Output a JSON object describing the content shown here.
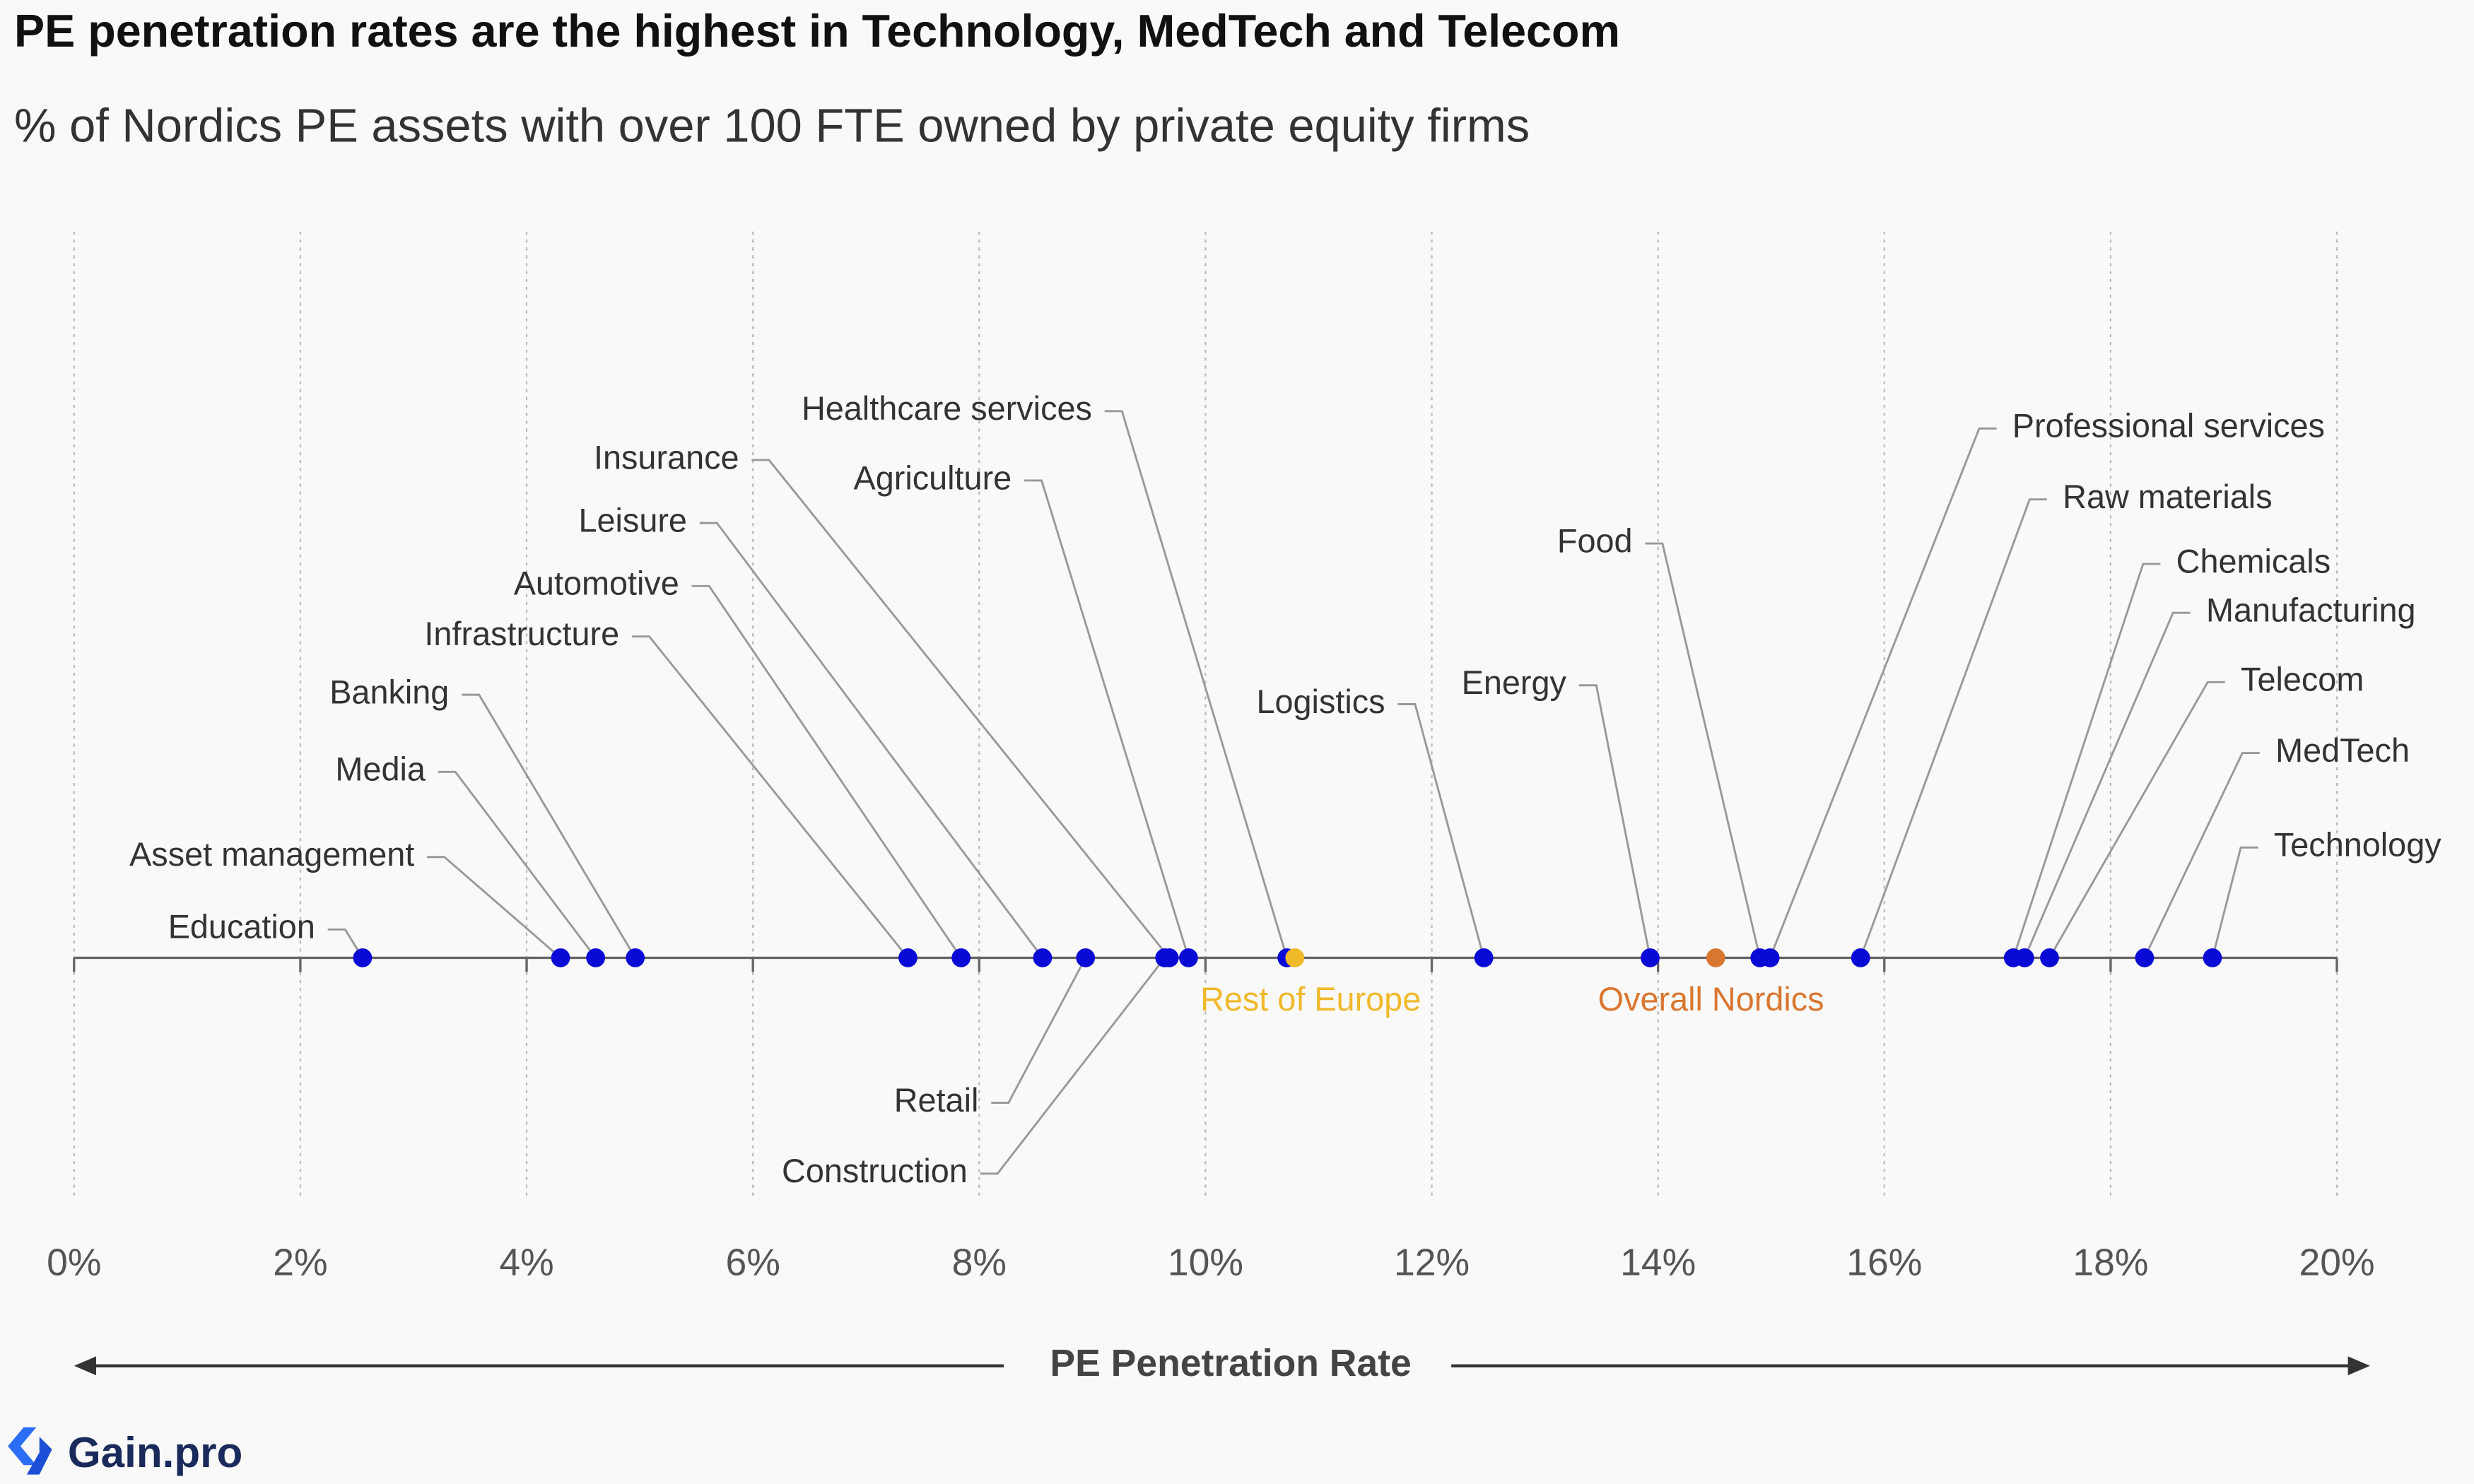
{
  "chart_data": {
    "type": "dot",
    "title": "PE penetration rates are the highest in Technology, MedTech and Telecom",
    "subtitle": "% of Nordics PE assets with over 100 FTE owned by private equity firms",
    "x_label": "PE Penetration Rate",
    "categories": [
      "Education",
      "Asset management",
      "Media",
      "Banking",
      "Infrastructure",
      "Automotive",
      "Leisure",
      "Retail",
      "Construction",
      "Insurance",
      "Agriculture",
      "Healthcare services",
      "Logistics",
      "Energy",
      "Food",
      "Professional services",
      "Raw materials",
      "Chemicals",
      "Manufacturing",
      "Telecom",
      "MedTech",
      "Technology"
    ],
    "values": [
      2.55,
      4.3,
      4.61,
      4.96,
      7.37,
      7.84,
      8.56,
      8.94,
      9.64,
      9.68,
      9.85,
      10.72,
      12.46,
      13.93,
      14.9,
      14.99,
      15.79,
      17.14,
      17.24,
      17.46,
      18.3,
      18.9
    ],
    "color": "#0a0ad6",
    "references": [
      {
        "name": "Rest of Europe",
        "value": 10.79,
        "color": "#f0b92a"
      },
      {
        "name": "Overall Nordics",
        "value": 14.51,
        "color": "#d9762f"
      }
    ],
    "xlim": [
      0,
      20
    ],
    "xticks": [
      {
        "value": 0,
        "label": "0%"
      },
      {
        "value": 2,
        "label": "2%"
      },
      {
        "value": 4,
        "label": "4%"
      },
      {
        "value": 6,
        "label": "6%"
      },
      {
        "value": 8,
        "label": "8%"
      },
      {
        "value": 10,
        "label": "10%"
      },
      {
        "value": 12,
        "label": "12%"
      },
      {
        "value": 14,
        "label": "14%"
      },
      {
        "value": 16,
        "label": "16%"
      },
      {
        "value": 18,
        "label": "18%"
      },
      {
        "value": 20,
        "label": "20%"
      }
    ],
    "grid": true
  },
  "brand": "Gain.pro"
}
